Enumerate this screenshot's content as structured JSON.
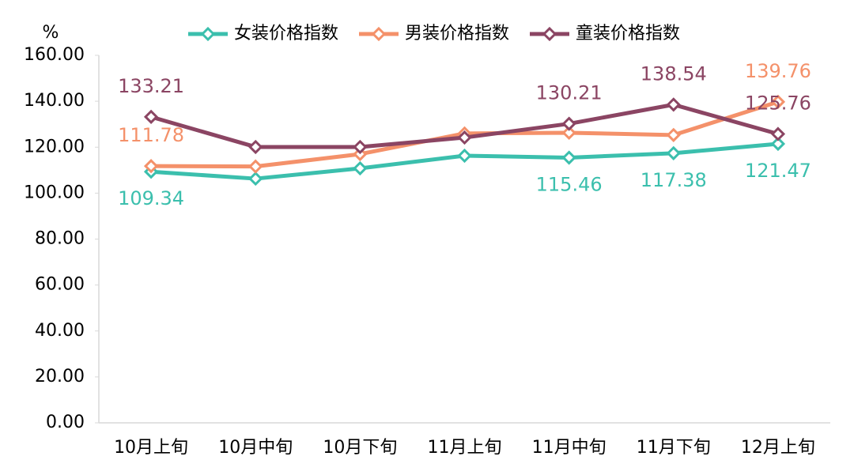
{
  "chart_data": {
    "type": "line",
    "y_label": "%",
    "categories": [
      "10月上旬",
      "10月中旬",
      "10月下旬",
      "11月上旬",
      "11月中旬",
      "11月下旬",
      "12月上旬"
    ],
    "series": [
      {
        "name": "女装价格指数",
        "color": "#3bbfad",
        "values": [
          109.34,
          106.3,
          110.8,
          116.3,
          115.46,
          117.38,
          121.47
        ],
        "value_labels": [
          "109.34",
          null,
          null,
          null,
          "115.46",
          "117.38",
          "121.47"
        ]
      },
      {
        "name": "男装价格指数",
        "color": "#f4916a",
        "values": [
          111.78,
          111.6,
          117.0,
          126.0,
          126.3,
          125.3,
          139.76
        ],
        "value_labels": [
          "111.78",
          null,
          null,
          null,
          null,
          null,
          "139.76"
        ]
      },
      {
        "name": "童装价格指数",
        "color": "#8b4563",
        "values": [
          133.21,
          120.1,
          120.1,
          124.2,
          130.21,
          138.54,
          125.76
        ],
        "value_labels": [
          "133.21",
          null,
          null,
          null,
          "130.21",
          "138.54",
          "125.76"
        ]
      }
    ],
    "ylim": [
      0,
      160
    ],
    "yticks": [
      {
        "value": 0,
        "label": "0.00"
      },
      {
        "value": 20,
        "label": "20.00"
      },
      {
        "value": 40,
        "label": "40.00"
      },
      {
        "value": 60,
        "label": "60.00"
      },
      {
        "value": 80,
        "label": "80.00"
      },
      {
        "value": 100,
        "label": "100.00"
      },
      {
        "value": 120,
        "label": "120.00"
      },
      {
        "value": 140,
        "label": "140.00"
      },
      {
        "value": 160,
        "label": "160.00"
      }
    ],
    "grid": false,
    "legend": "top"
  }
}
